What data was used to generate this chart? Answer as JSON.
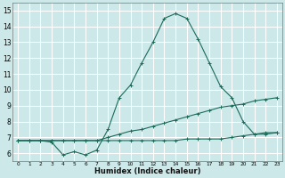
{
  "xlabel": "Humidex (Indice chaleur)",
  "bg_color": "#cce8e8",
  "grid_color": "#ffffff",
  "line_color": "#1a6b5a",
  "xlim": [
    -0.5,
    23.5
  ],
  "ylim": [
    5.5,
    15.5
  ],
  "xticks": [
    0,
    1,
    2,
    3,
    4,
    5,
    6,
    7,
    8,
    9,
    10,
    11,
    12,
    13,
    14,
    15,
    16,
    17,
    18,
    19,
    20,
    21,
    22,
    23
  ],
  "yticks": [
    6,
    7,
    8,
    9,
    10,
    11,
    12,
    13,
    14,
    15
  ],
  "series1_x": [
    0,
    1,
    2,
    3,
    4,
    5,
    6,
    7,
    8,
    9,
    10,
    11,
    12,
    13,
    14,
    15,
    16,
    17,
    18,
    19,
    20,
    21,
    22,
    23
  ],
  "series1_y": [
    6.8,
    6.8,
    6.8,
    6.8,
    6.8,
    6.8,
    6.8,
    6.8,
    7.0,
    7.2,
    7.4,
    7.5,
    7.7,
    7.9,
    8.1,
    8.3,
    8.5,
    8.7,
    8.9,
    9.0,
    9.1,
    9.3,
    9.4,
    9.5
  ],
  "series2_x": [
    0,
    1,
    2,
    3,
    4,
    5,
    6,
    7,
    8,
    9,
    10,
    11,
    12,
    13,
    14,
    15,
    16,
    17,
    18,
    19,
    20,
    21,
    22,
    23
  ],
  "series2_y": [
    6.8,
    6.8,
    6.8,
    6.7,
    5.9,
    6.1,
    5.9,
    6.2,
    7.5,
    9.5,
    10.3,
    11.7,
    13.0,
    14.5,
    14.8,
    14.5,
    13.2,
    11.7,
    10.2,
    9.5,
    8.0,
    7.2,
    7.2,
    7.3
  ],
  "series3_x": [
    0,
    1,
    2,
    3,
    4,
    5,
    6,
    7,
    8,
    9,
    10,
    11,
    12,
    13,
    14,
    15,
    16,
    17,
    18,
    19,
    20,
    21,
    22,
    23
  ],
  "series3_y": [
    6.8,
    6.8,
    6.8,
    6.8,
    6.8,
    6.8,
    6.8,
    6.8,
    6.8,
    6.8,
    6.8,
    6.8,
    6.8,
    6.8,
    6.8,
    6.9,
    6.9,
    6.9,
    6.9,
    7.0,
    7.1,
    7.2,
    7.3,
    7.3
  ]
}
